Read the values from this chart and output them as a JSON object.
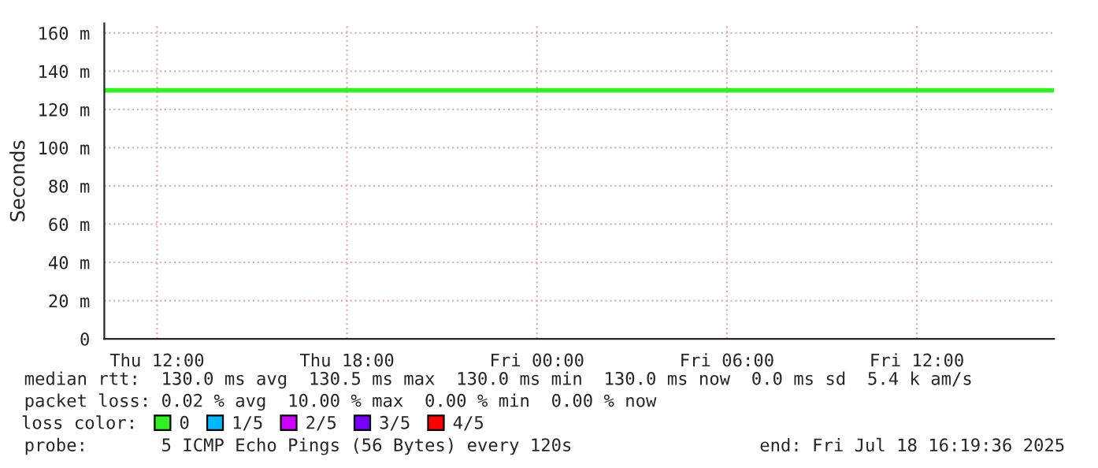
{
  "chart_data": {
    "type": "line",
    "ylabel": "Seconds",
    "x": [
      "2025-07-17T10:20",
      "2025-07-18T16:18"
    ],
    "series": [
      {
        "name": "0",
        "color": "#33ee22",
        "values": [
          130,
          130
        ]
      },
      {
        "name": "1/5",
        "color": "#00b8ff",
        "values": [
          null,
          null
        ]
      },
      {
        "name": "2/5",
        "color": "#cc00ff",
        "values": [
          null,
          null
        ]
      },
      {
        "name": "3/5",
        "color": "#7700ff",
        "values": [
          null,
          null
        ]
      },
      {
        "name": "4/5",
        "color": "#ff0000",
        "values": [
          null,
          null
        ]
      }
    ],
    "legend_title": "loss color:",
    "legend": "bottom",
    "xlim": [
      "2025-07-17T10:20",
      "2025-07-18T16:20"
    ],
    "xticks": [
      {
        "value": "2025-07-17T12:00",
        "label": "Thu 12:00"
      },
      {
        "value": "2025-07-17T18:00",
        "label": "Thu 18:00"
      },
      {
        "value": "2025-07-18T00:00",
        "label": "Fri 00:00"
      },
      {
        "value": "2025-07-18T06:00",
        "label": "Fri 06:00"
      },
      {
        "value": "2025-07-18T12:00",
        "label": "Fri 12:00"
      }
    ],
    "ylim": [
      0,
      165
    ],
    "yticks": [
      0,
      {
        "value": 20,
        "label": "20 m"
      },
      {
        "value": 40,
        "label": "40 m"
      },
      {
        "value": 60,
        "label": "60 m"
      },
      {
        "value": 80,
        "label": "80 m"
      },
      {
        "value": 100,
        "label": "100 m"
      },
      {
        "value": 120,
        "label": "120 m"
      },
      {
        "value": 140,
        "label": "140 m"
      },
      {
        "value": 160,
        "label": "160 m"
      }
    ],
    "grid": true,
    "annotations": [
      "median rtt:  130.0 ms avg  130.5 ms max  130.0 ms min  130.0 ms now  0.0 ms sd  5.4 k am/s",
      "packet loss: 0.02 % avg  10.00 % max  0.00 % min  0.00 % now",
      "probe:       5 ICMP Echo Pings (56 Bytes) every 120s",
      "end: Fri Jul 18 16:19:36 2025"
    ]
  }
}
